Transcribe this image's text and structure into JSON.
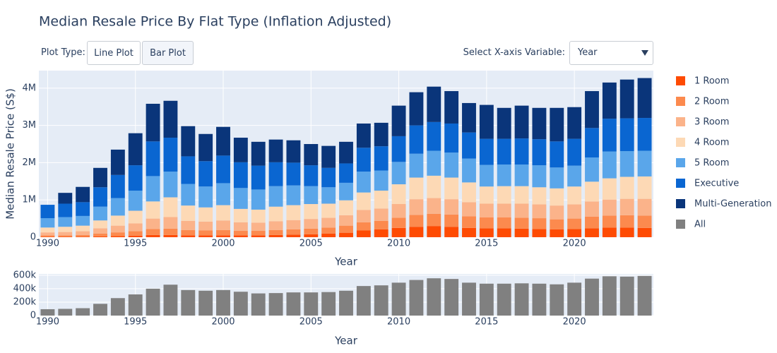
{
  "controls": {
    "plot_type_label": "Plot Type:",
    "buttons": [
      "Line Plot",
      "Bar Plot"
    ],
    "x_variable_label": "Select X-axis Variable:",
    "x_variable_value": "Year"
  },
  "chart_data": [
    {
      "type": "stacked-bar",
      "title": "Median Resale Price By Flat Type (Inflation Adjusted)",
      "ylabel": "Median Resale Price (S$)",
      "xlabel": "Year",
      "x": [
        1990,
        1991,
        1992,
        1993,
        1994,
        1995,
        1996,
        1997,
        1998,
        1999,
        2000,
        2001,
        2002,
        2003,
        2004,
        2005,
        2006,
        2007,
        2008,
        2009,
        2010,
        2011,
        2012,
        2013,
        2014,
        2015,
        2016,
        2017,
        2018,
        2019,
        2020,
        2021,
        2022,
        2023,
        2024
      ],
      "xlim": [
        1989.5,
        2024.5
      ],
      "xticks": [
        1990,
        1995,
        2000,
        2005,
        2010,
        2015,
        2020
      ],
      "ylim": [
        0,
        4470000
      ],
      "yticks": [
        0,
        {
          "value": 1000000,
          "label": "1M"
        },
        {
          "value": 2000000,
          "label": "2M"
        },
        {
          "value": 3000000,
          "label": "3M"
        },
        {
          "value": 4000000,
          "label": "4M"
        }
      ],
      "grid": true,
      "series": [
        {
          "name": "1 Room",
          "color": "#fe4b03",
          "values": [
            10000,
            10000,
            10000,
            20000,
            30000,
            40000,
            60000,
            60000,
            50000,
            50000,
            50000,
            50000,
            50000,
            60000,
            70000,
            80000,
            100000,
            120000,
            180000,
            210000,
            250000,
            280000,
            300000,
            280000,
            250000,
            240000,
            240000,
            230000,
            220000,
            210000,
            220000,
            240000,
            260000,
            260000,
            250000
          ]
        },
        {
          "name": "2 Room",
          "color": "#fc8a4e",
          "values": [
            40000,
            40000,
            50000,
            80000,
            100000,
            120000,
            160000,
            170000,
            140000,
            130000,
            140000,
            120000,
            120000,
            130000,
            140000,
            150000,
            160000,
            190000,
            220000,
            230000,
            270000,
            320000,
            330000,
            330000,
            310000,
            290000,
            290000,
            290000,
            290000,
            270000,
            280000,
            310000,
            320000,
            330000,
            330000
          ]
        },
        {
          "name": "3 Room",
          "color": "#fbb38a",
          "values": [
            80000,
            90000,
            100000,
            140000,
            180000,
            210000,
            280000,
            310000,
            250000,
            240000,
            260000,
            230000,
            220000,
            240000,
            250000,
            260000,
            260000,
            280000,
            330000,
            330000,
            370000,
            420000,
            420000,
            410000,
            380000,
            370000,
            370000,
            380000,
            370000,
            370000,
            380000,
            410000,
            430000,
            440000,
            450000
          ]
        },
        {
          "name": "4 Room",
          "color": "#fdd9b5",
          "values": [
            130000,
            140000,
            150000,
            210000,
            270000,
            340000,
            460000,
            530000,
            410000,
            380000,
            410000,
            360000,
            350000,
            390000,
            400000,
            400000,
            380000,
            400000,
            470000,
            480000,
            530000,
            580000,
            600000,
            580000,
            530000,
            460000,
            470000,
            470000,
            460000,
            460000,
            480000,
            530000,
            570000,
            590000,
            600000
          ]
        },
        {
          "name": "5 Room",
          "color": "#5aa6ea",
          "values": [
            250000,
            260000,
            260000,
            370000,
            470000,
            540000,
            680000,
            690000,
            580000,
            560000,
            590000,
            560000,
            540000,
            550000,
            530000,
            480000,
            440000,
            470000,
            560000,
            540000,
            600000,
            640000,
            670000,
            670000,
            640000,
            580000,
            580000,
            580000,
            590000,
            560000,
            560000,
            650000,
            720000,
            690000,
            690000
          ]
        },
        {
          "name": "Executive",
          "color": "#0a66d1",
          "values": [
            360000,
            360000,
            370000,
            520000,
            620000,
            680000,
            930000,
            910000,
            740000,
            680000,
            740000,
            690000,
            640000,
            640000,
            610000,
            560000,
            520000,
            520000,
            640000,
            650000,
            690000,
            760000,
            770000,
            780000,
            700000,
            700000,
            690000,
            700000,
            700000,
            700000,
            720000,
            790000,
            880000,
            880000,
            880000
          ]
        },
        {
          "name": "Multi-Generation",
          "color": "#0a357a",
          "values": [
            null,
            290000,
            410000,
            520000,
            680000,
            860000,
            1010000,
            990000,
            810000,
            730000,
            770000,
            660000,
            640000,
            610000,
            600000,
            570000,
            590000,
            580000,
            650000,
            630000,
            820000,
            890000,
            950000,
            870000,
            790000,
            910000,
            830000,
            880000,
            840000,
            900000,
            850000,
            990000,
            970000,
            1040000,
            1070000
          ]
        }
      ]
    },
    {
      "type": "bar",
      "xlabel": "Year",
      "x": [
        1990,
        1991,
        1992,
        1993,
        1994,
        1995,
        1996,
        1997,
        1998,
        1999,
        2000,
        2001,
        2002,
        2003,
        2004,
        2005,
        2006,
        2007,
        2008,
        2009,
        2010,
        2011,
        2012,
        2013,
        2014,
        2015,
        2016,
        2017,
        2018,
        2019,
        2020,
        2021,
        2022,
        2023,
        2024
      ],
      "xlim": [
        1989.5,
        2024.5
      ],
      "xticks": [
        1990,
        1995,
        2000,
        2005,
        2010,
        2015,
        2020
      ],
      "ylim": [
        0,
        620000
      ],
      "yticks": [
        0,
        {
          "value": 200000,
          "label": "200k"
        },
        {
          "value": 400000,
          "label": "400k"
        },
        {
          "value": 600000,
          "label": "600k"
        }
      ],
      "grid": true,
      "series": [
        {
          "name": "All",
          "color": "#808080",
          "values": [
            95000,
            100000,
            110000,
            175000,
            260000,
            315000,
            400000,
            460000,
            380000,
            370000,
            380000,
            355000,
            330000,
            335000,
            345000,
            345000,
            350000,
            370000,
            440000,
            450000,
            490000,
            530000,
            555000,
            545000,
            490000,
            475000,
            475000,
            480000,
            475000,
            465000,
            490000,
            550000,
            585000,
            580000,
            590000
          ]
        }
      ]
    }
  ]
}
